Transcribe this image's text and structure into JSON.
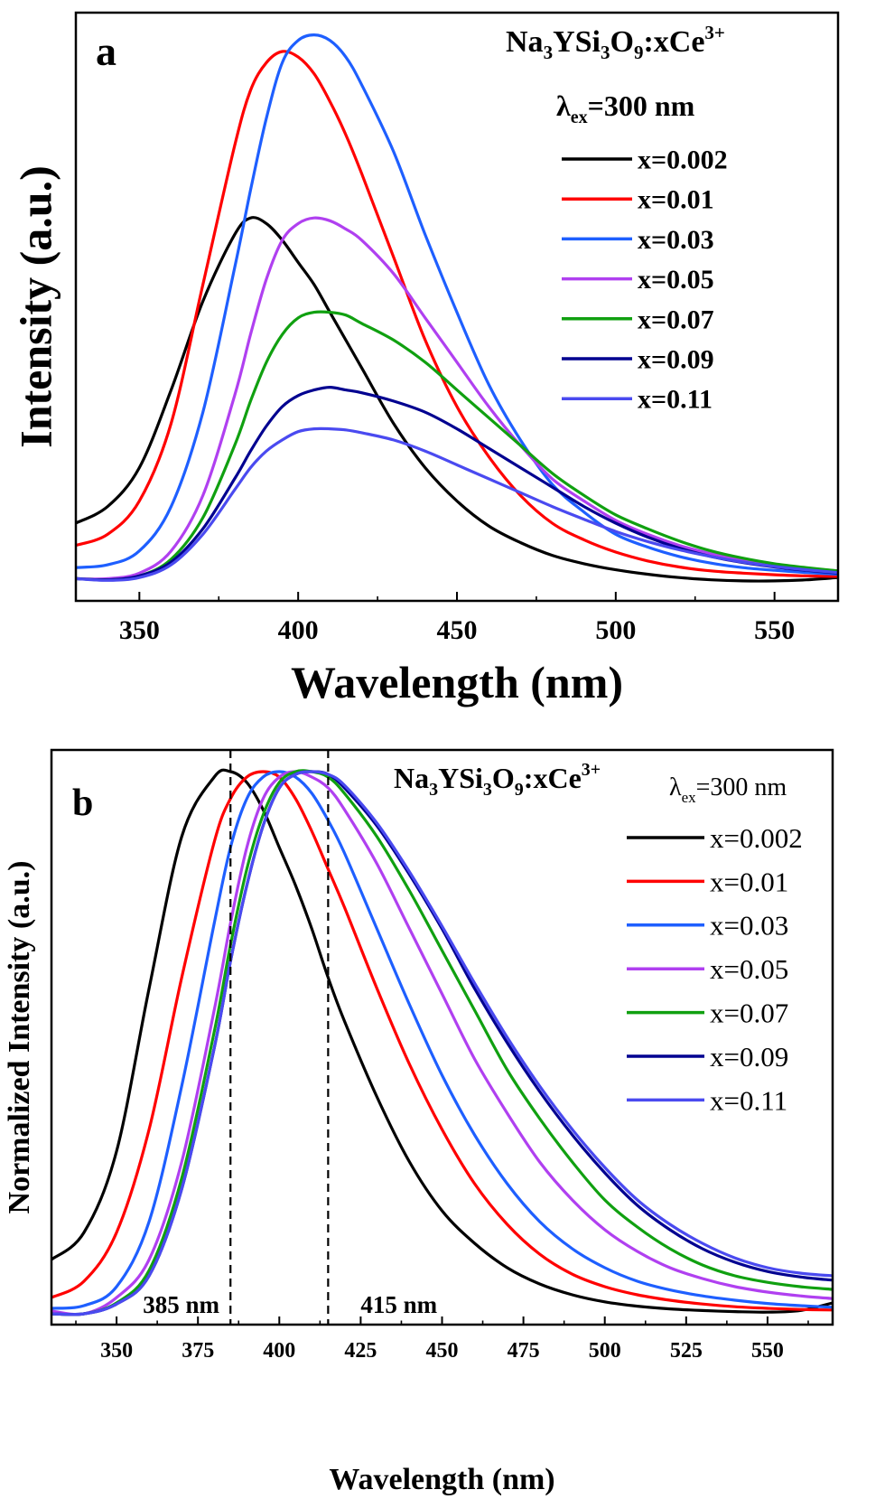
{
  "chart_data": [
    {
      "panel_label": "a",
      "type": "line",
      "formula": {
        "base": "Na",
        "s1": "3",
        "mid1": "YSi",
        "s2": "3",
        "mid2": "O",
        "s3": "9",
        "mid3": ":xCe",
        "sup": "3+"
      },
      "excitation": {
        "lambda": "λ",
        "sub": "ex",
        "value": "=300 nm"
      },
      "xlabel": "Wavelength (nm)",
      "ylabel": "Intensity (a.u.)",
      "xlim": [
        330,
        570
      ],
      "ylim": [
        0,
        1.0
      ],
      "xticks": [
        350,
        400,
        450,
        500,
        550
      ],
      "legend_position": "top-right",
      "x": [
        330,
        340,
        350,
        360,
        370,
        380,
        385,
        390,
        395,
        400,
        405,
        410,
        415,
        420,
        430,
        440,
        450,
        460,
        470,
        480,
        490,
        500,
        510,
        520,
        530,
        540,
        550,
        560,
        570
      ],
      "series": [
        {
          "name": "x=0.002",
          "color": "#000000",
          "values": [
            0.12,
            0.15,
            0.22,
            0.36,
            0.52,
            0.64,
            0.67,
            0.66,
            0.63,
            0.59,
            0.55,
            0.5,
            0.45,
            0.4,
            0.3,
            0.22,
            0.16,
            0.115,
            0.085,
            0.062,
            0.047,
            0.036,
            0.028,
            0.022,
            0.018,
            0.016,
            0.016,
            0.018,
            0.022
          ]
        },
        {
          "name": "x=0.01",
          "color": "#ff0000",
          "values": [
            0.08,
            0.1,
            0.16,
            0.3,
            0.55,
            0.8,
            0.9,
            0.95,
            0.97,
            0.96,
            0.93,
            0.88,
            0.82,
            0.75,
            0.6,
            0.45,
            0.33,
            0.24,
            0.17,
            0.12,
            0.09,
            0.068,
            0.052,
            0.041,
            0.034,
            0.03,
            0.027,
            0.025,
            0.024
          ]
        },
        {
          "name": "x=0.03",
          "color": "#1e5fff",
          "values": [
            0.04,
            0.045,
            0.07,
            0.15,
            0.32,
            0.58,
            0.72,
            0.85,
            0.95,
            0.99,
            1.0,
            0.99,
            0.96,
            0.91,
            0.79,
            0.64,
            0.5,
            0.37,
            0.27,
            0.19,
            0.14,
            0.1,
            0.077,
            0.06,
            0.048,
            0.04,
            0.035,
            0.031,
            0.028
          ]
        },
        {
          "name": "x=0.05",
          "color": "#b040f0",
          "values": [
            0.02,
            0.02,
            0.03,
            0.07,
            0.17,
            0.35,
            0.46,
            0.56,
            0.63,
            0.66,
            0.67,
            0.665,
            0.65,
            0.63,
            0.57,
            0.49,
            0.41,
            0.33,
            0.26,
            0.2,
            0.16,
            0.125,
            0.1,
            0.08,
            0.065,
            0.053,
            0.045,
            0.039,
            0.034
          ]
        },
        {
          "name": "x=0.07",
          "color": "#10a010",
          "values": [
            0.02,
            0.018,
            0.025,
            0.055,
            0.13,
            0.26,
            0.34,
            0.41,
            0.46,
            0.49,
            0.5,
            0.5,
            0.495,
            0.48,
            0.45,
            0.41,
            0.36,
            0.31,
            0.26,
            0.21,
            0.17,
            0.135,
            0.11,
            0.088,
            0.07,
            0.057,
            0.047,
            0.04,
            0.034
          ]
        },
        {
          "name": "x=0.09",
          "color": "#000090",
          "values": [
            0.02,
            0.018,
            0.025,
            0.05,
            0.11,
            0.2,
            0.25,
            0.295,
            0.33,
            0.35,
            0.36,
            0.365,
            0.36,
            0.355,
            0.34,
            0.32,
            0.29,
            0.255,
            0.22,
            0.185,
            0.15,
            0.12,
            0.095,
            0.075,
            0.06,
            0.049,
            0.041,
            0.035,
            0.03
          ]
        },
        {
          "name": "x=0.11",
          "color": "#4a4af0",
          "values": [
            0.02,
            0.017,
            0.022,
            0.045,
            0.1,
            0.18,
            0.22,
            0.25,
            0.27,
            0.285,
            0.29,
            0.29,
            0.288,
            0.283,
            0.27,
            0.25,
            0.225,
            0.2,
            0.175,
            0.15,
            0.127,
            0.105,
            0.087,
            0.072,
            0.06,
            0.05,
            0.042,
            0.036,
            0.031
          ]
        }
      ]
    },
    {
      "panel_label": "b",
      "type": "line",
      "formula": {
        "base": "Na",
        "s1": "3",
        "mid1": "YSi",
        "s2": "3",
        "mid2": "O",
        "s3": "9",
        "mid3": ":xCe",
        "sup": "3+"
      },
      "excitation": {
        "lambda": "λ",
        "sub": "ex",
        "value": "=300 nm"
      },
      "xlabel": "Wavelength (nm)",
      "ylabel": "Normalized Intensity (a.u.)",
      "xlim": [
        330,
        570
      ],
      "ylim": [
        0,
        1.0
      ],
      "xticks": [
        350,
        375,
        400,
        425,
        450,
        475,
        500,
        525,
        550
      ],
      "legend_position": "top-right",
      "annotations": [
        {
          "x": 385,
          "text": "385 nm"
        },
        {
          "x": 415,
          "text": "415 nm"
        }
      ],
      "x": [
        330,
        340,
        350,
        360,
        370,
        380,
        385,
        390,
        395,
        400,
        405,
        410,
        415,
        420,
        430,
        440,
        450,
        460,
        470,
        480,
        490,
        500,
        510,
        520,
        530,
        540,
        550,
        560,
        570
      ],
      "series": [
        {
          "name": "x=0.002",
          "color": "#000000",
          "values": [
            0.1,
            0.15,
            0.3,
            0.6,
            0.88,
            0.99,
            1.0,
            0.98,
            0.93,
            0.86,
            0.79,
            0.71,
            0.62,
            0.54,
            0.4,
            0.28,
            0.19,
            0.13,
            0.085,
            0.055,
            0.035,
            0.022,
            0.014,
            0.009,
            0.006,
            0.004,
            0.003,
            0.006,
            0.02
          ]
        },
        {
          "name": "x=0.01",
          "color": "#ff0000",
          "values": [
            0.03,
            0.06,
            0.15,
            0.34,
            0.62,
            0.87,
            0.95,
            0.99,
            1.0,
            0.99,
            0.95,
            0.89,
            0.82,
            0.75,
            0.6,
            0.46,
            0.34,
            0.24,
            0.165,
            0.11,
            0.073,
            0.05,
            0.035,
            0.025,
            0.018,
            0.013,
            0.01,
            0.008,
            0.007
          ]
        },
        {
          "name": "x=0.03",
          "color": "#1e5fff",
          "values": [
            0.01,
            0.015,
            0.05,
            0.17,
            0.42,
            0.72,
            0.86,
            0.95,
            0.99,
            1.0,
            0.99,
            0.96,
            0.91,
            0.85,
            0.71,
            0.57,
            0.44,
            0.33,
            0.24,
            0.17,
            0.12,
            0.085,
            0.06,
            0.044,
            0.033,
            0.025,
            0.019,
            0.015,
            0.012
          ]
        },
        {
          "name": "x=0.05",
          "color": "#b040f0",
          "values": [
            0.005,
            0.0,
            0.03,
            0.1,
            0.28,
            0.56,
            0.72,
            0.86,
            0.95,
            0.99,
            1.0,
            0.99,
            0.97,
            0.93,
            0.83,
            0.71,
            0.59,
            0.47,
            0.37,
            0.28,
            0.21,
            0.155,
            0.115,
            0.085,
            0.065,
            0.05,
            0.04,
            0.033,
            0.028
          ]
        },
        {
          "name": "x=0.07",
          "color": "#10a010",
          "values": [
            0.0,
            0.0,
            0.02,
            0.08,
            0.25,
            0.52,
            0.68,
            0.82,
            0.92,
            0.98,
            1.0,
            1.0,
            0.99,
            0.96,
            0.88,
            0.78,
            0.67,
            0.56,
            0.45,
            0.36,
            0.28,
            0.21,
            0.16,
            0.12,
            0.09,
            0.07,
            0.058,
            0.05,
            0.045
          ]
        },
        {
          "name": "x=0.09",
          "color": "#000090",
          "values": [
            0.0,
            0.0,
            0.018,
            0.07,
            0.23,
            0.49,
            0.65,
            0.79,
            0.9,
            0.97,
            0.995,
            1.0,
            0.995,
            0.97,
            0.9,
            0.81,
            0.71,
            0.6,
            0.5,
            0.41,
            0.33,
            0.26,
            0.2,
            0.155,
            0.12,
            0.095,
            0.078,
            0.068,
            0.062
          ]
        },
        {
          "name": "x=0.11",
          "color": "#4a4af0",
          "values": [
            0.0,
            0.0,
            0.018,
            0.07,
            0.23,
            0.49,
            0.65,
            0.79,
            0.9,
            0.97,
            0.995,
            1.0,
            0.995,
            0.975,
            0.905,
            0.815,
            0.715,
            0.61,
            0.51,
            0.42,
            0.34,
            0.27,
            0.21,
            0.165,
            0.13,
            0.103,
            0.085,
            0.075,
            0.07
          ]
        }
      ]
    }
  ]
}
